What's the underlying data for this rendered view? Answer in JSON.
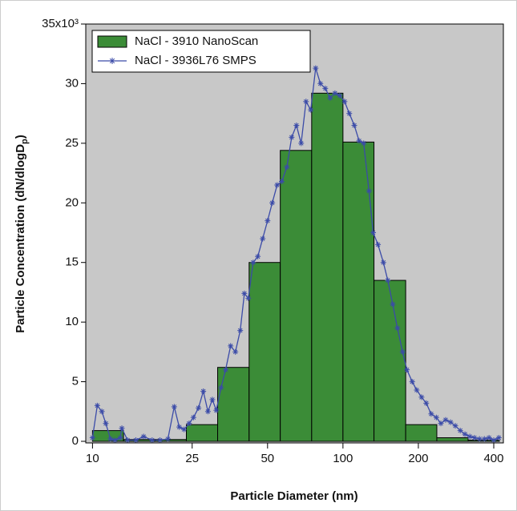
{
  "chart_data": {
    "type": "histogram",
    "x_label": "Particle Diameter (nm)",
    "y_label": "Particle Concentration (dN/dlogD",
    "y_label_sub": "p",
    "y_label_end": ")",
    "log_x": true,
    "xlim": [
      9.4,
      437
    ],
    "ylim": [
      0,
      35
    ],
    "xticks": [
      10,
      25,
      50,
      100,
      200,
      400
    ],
    "yticks": [
      0,
      5,
      10,
      15,
      20,
      25,
      30,
      {
        "value": 35,
        "label": "35x10³"
      }
    ],
    "legend": "upper left",
    "bins": [
      10,
      13.3,
      17.8,
      23.7,
      31.6,
      42.2,
      56.2,
      75,
      100,
      133,
      178,
      237,
      316,
      421
    ],
    "series": [
      {
        "name": "NaCl - 3910 NanoScan",
        "type": "histogram",
        "color": "#3b8c37",
        "values": [
          0.9,
          0.15,
          0.15,
          1.4,
          6.2,
          15.0,
          24.4,
          29.2,
          25.1,
          13.5,
          1.4,
          0.3,
          0.1
        ]
      },
      {
        "name": "NaCl - 3936L76 SMPS",
        "type": "line",
        "color": "#3b4ba8",
        "x": [
          10,
          10.45,
          10.9,
          11.3,
          11.8,
          12.3,
          12.9,
          13.1,
          13.8,
          14.9,
          16.0,
          17.3,
          18.6,
          20.0,
          21.2,
          22.2,
          23.2,
          24.3,
          25.3,
          26.5,
          27.7,
          28.9,
          30.1,
          31.2,
          32.6,
          34.0,
          35.6,
          37.2,
          38.9,
          40.4,
          41.9,
          43.8,
          45.7,
          47.8,
          50.0,
          52.2,
          54.6,
          57.0,
          59.7,
          62.4,
          65.2,
          68.1,
          71.2,
          74.4,
          77.8,
          81.3,
          85.0,
          88.9,
          92.9,
          97.1,
          101.5,
          106,
          111,
          116,
          121,
          127,
          132,
          138,
          145,
          151,
          158,
          165,
          173,
          180,
          189,
          197,
          206,
          215,
          225,
          236,
          246,
          257,
          269,
          281,
          294,
          307,
          321,
          335,
          351,
          367,
          383,
          400,
          419
        ],
        "values": [
          0.3,
          3.0,
          2.5,
          1.5,
          0.2,
          0.1,
          0.3,
          1.1,
          0.1,
          0.1,
          0.4,
          0.1,
          0.1,
          0.2,
          2.9,
          1.2,
          1.0,
          1.5,
          2.0,
          2.8,
          4.2,
          2.5,
          3.5,
          2.6,
          4.5,
          6.0,
          8.0,
          7.5,
          9.3,
          12.4,
          12.0,
          15.0,
          15.5,
          17.0,
          18.5,
          20.0,
          21.5,
          21.8,
          23.0,
          25.5,
          26.5,
          25.0,
          28.5,
          27.8,
          31.3,
          30.0,
          29.6,
          28.8,
          29.2,
          29.0,
          28.5,
          27.5,
          26.5,
          25.2,
          25.0,
          21.0,
          17.5,
          16.5,
          15.0,
          13.5,
          11.5,
          9.5,
          7.5,
          6.0,
          5.0,
          4.3,
          3.7,
          3.2,
          2.3,
          2.0,
          1.5,
          1.8,
          1.6,
          1.3,
          0.9,
          0.6,
          0.4,
          0.3,
          0.2,
          0.2,
          0.3,
          0.1,
          0.3
        ]
      }
    ]
  }
}
